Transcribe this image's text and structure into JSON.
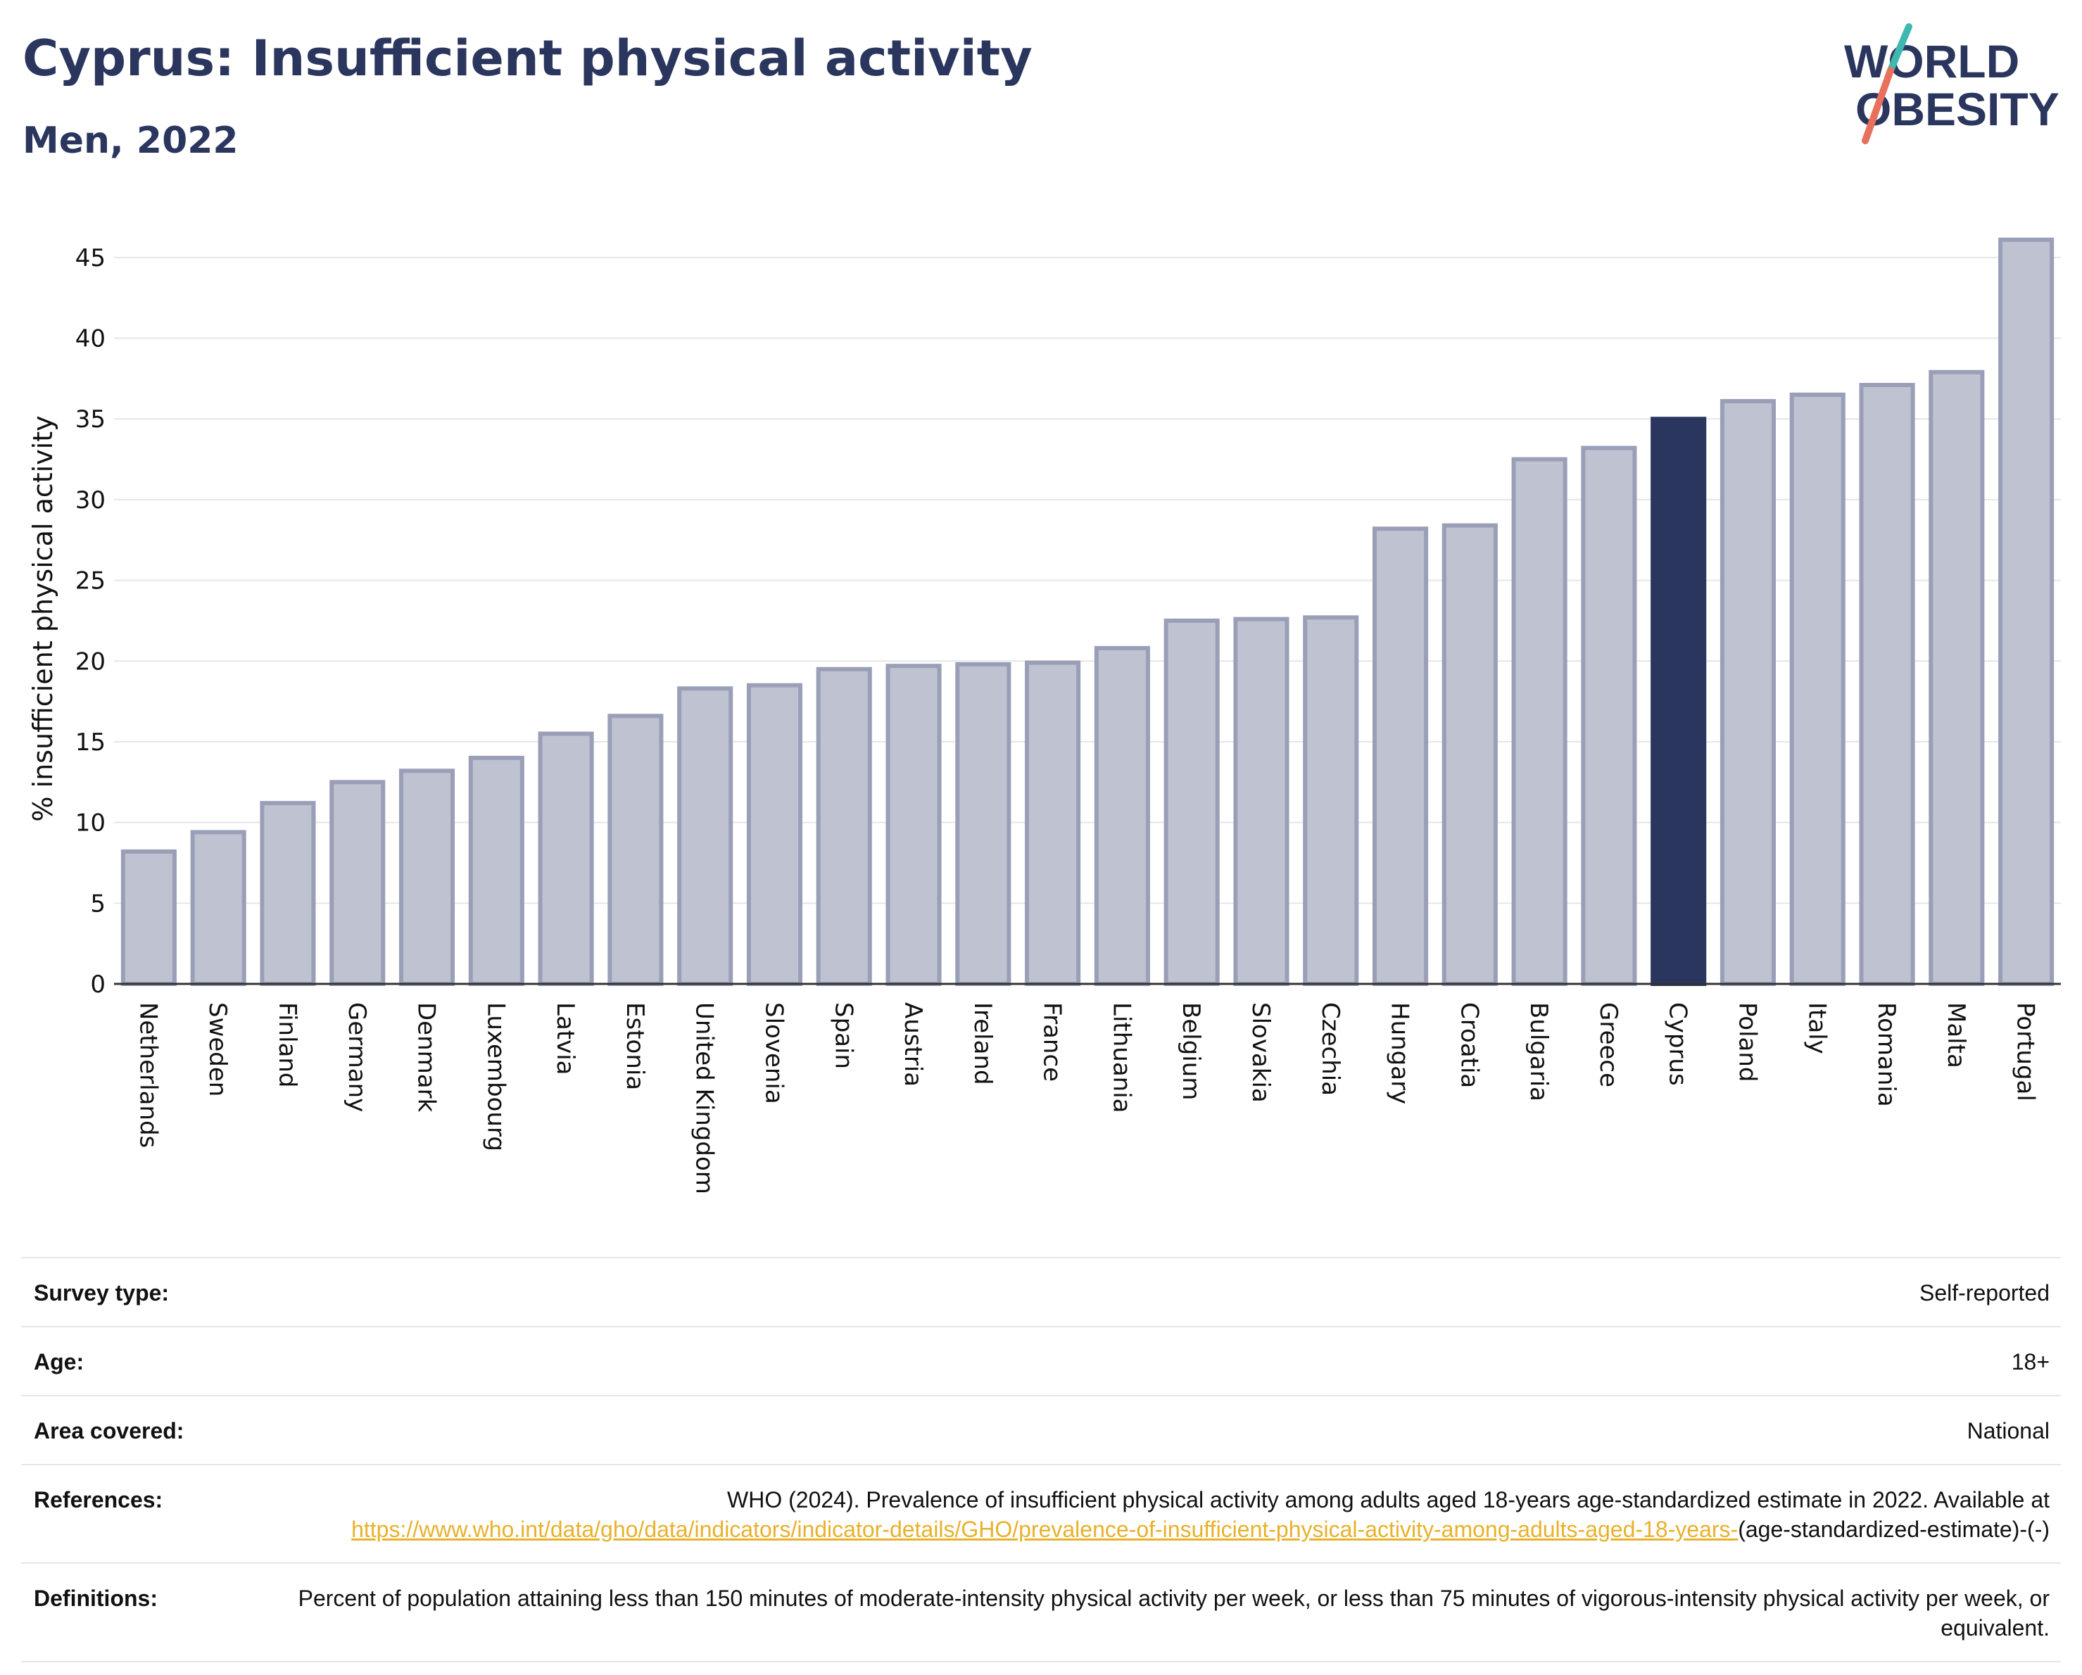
{
  "header": {
    "title": "Cyprus: Insufficient physical activity",
    "subtitle": "Men, 2022"
  },
  "logo": {
    "line1": "WORLD",
    "line2": "OBESITY",
    "text_color": "#2b365e",
    "slash_top_color": "#3fb8b0",
    "slash_bottom_color": "#e8705d"
  },
  "colors": {
    "bar_default": "#bfc2d0",
    "bar_border": "#9a9fb8",
    "bar_highlight": "#2b365e",
    "grid": "#e6e6ea",
    "axis": "#333333"
  },
  "chart_data": {
    "type": "bar",
    "title": "Cyprus: Insufficient physical activity",
    "subtitle": "Men, 2022",
    "xlabel": "",
    "ylabel": "% insufficient physical activity",
    "ylim": [
      0,
      47
    ],
    "yticks": [
      0,
      5,
      10,
      15,
      20,
      25,
      30,
      35,
      40,
      45
    ],
    "grid": true,
    "highlight": "Cyprus",
    "categories": [
      "Netherlands",
      "Sweden",
      "Finland",
      "Germany",
      "Denmark",
      "Luxembourg",
      "Latvia",
      "Estonia",
      "United Kingdom",
      "Slovenia",
      "Spain",
      "Austria",
      "Ireland",
      "France",
      "Lithuania",
      "Belgium",
      "Slovakia",
      "Czechia",
      "Hungary",
      "Croatia",
      "Bulgaria",
      "Greece",
      "Cyprus",
      "Poland",
      "Italy",
      "Romania",
      "Malta",
      "Portugal"
    ],
    "values": [
      8.2,
      9.4,
      11.2,
      12.5,
      13.2,
      14.0,
      15.5,
      16.6,
      18.3,
      18.5,
      19.5,
      19.7,
      19.8,
      19.9,
      20.8,
      22.5,
      22.6,
      22.7,
      28.2,
      28.4,
      32.5,
      33.2,
      35.0,
      36.1,
      36.5,
      37.1,
      37.9,
      46.1
    ]
  },
  "info": {
    "survey_type": {
      "label": "Survey type:",
      "value": "Self-reported"
    },
    "age": {
      "label": "Age:",
      "value": "18+"
    },
    "area": {
      "label": "Area covered:",
      "value": "National"
    },
    "references": {
      "label": "References:",
      "text": "WHO (2024). Prevalence of insufficient physical activity among adults aged 18-years age-standardized estimate in 2022. Available at",
      "link": "https://www.who.int/data/gho/data/indicators/indicator-details/GHO/prevalence-of-insufficient-physical-activity-among-adults-aged-18-years-",
      "suffix": "(age-standardized-estimate)-(-)"
    },
    "definitions": {
      "label": "Definitions:",
      "value": "Percent of population attaining less than 150 minutes of moderate-intensity physical activity per week, or less than 75 minutes of vigorous-intensity physical activity per week, or equivalent."
    }
  }
}
